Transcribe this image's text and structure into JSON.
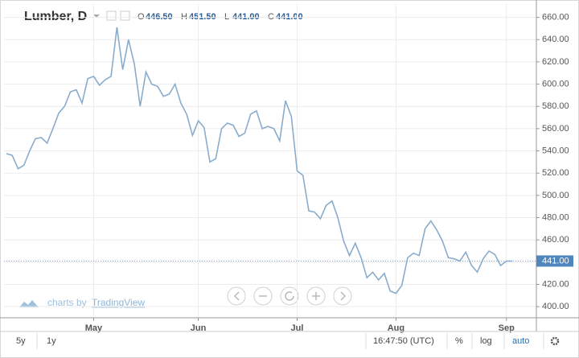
{
  "chart_data": {
    "type": "line",
    "title": "Lumber, D",
    "ohlc": [
      {
        "key": "O",
        "value": "446.50"
      },
      {
        "key": "H",
        "value": "451.50"
      },
      {
        "key": "L",
        "value": "441.00"
      },
      {
        "key": "C",
        "value": "441.00"
      }
    ],
    "series": [
      {
        "name": "Lumber",
        "color": "#8aaccc",
        "values": [
          537.6,
          536,
          524,
          527,
          540,
          551,
          552,
          547,
          560,
          574,
          580,
          593,
          595,
          583,
          605,
          607,
          599,
          604,
          607,
          651,
          613,
          640,
          618,
          580,
          611,
          600,
          598,
          589,
          591,
          600,
          583,
          573,
          554,
          567,
          561,
          530,
          533,
          560,
          565,
          563,
          553,
          556,
          573,
          576,
          560,
          562,
          560,
          549,
          585,
          571,
          522,
          518,
          486,
          485,
          479,
          491,
          495,
          480,
          459,
          446,
          457,
          444,
          426,
          431,
          424,
          430,
          414,
          412,
          419,
          444,
          448,
          446,
          470,
          477,
          469,
          459,
          444,
          443,
          441,
          449,
          437,
          431,
          443,
          450,
          447,
          437,
          441,
          441
        ]
      }
    ],
    "xticks": [
      {
        "value": 15,
        "label": "May"
      },
      {
        "value": 33,
        "label": "Jun"
      },
      {
        "value": 50,
        "label": "Jul"
      },
      {
        "value": 67,
        "label": "Aug"
      },
      {
        "value": 86,
        "label": "Sep"
      }
    ],
    "ylim": [
      390,
      672
    ],
    "yticks": [
      {
        "value": 400,
        "label": "400.00"
      },
      {
        "value": 420,
        "label": "420.00"
      },
      {
        "value": 440,
        "label": "440.00"
      },
      {
        "value": 460,
        "label": "460.00"
      },
      {
        "value": 480,
        "label": "480.00"
      },
      {
        "value": 500,
        "label": "500.00"
      },
      {
        "value": 520,
        "label": "520.00"
      },
      {
        "value": 540,
        "label": "540.00"
      },
      {
        "value": 560,
        "label": "560.00"
      },
      {
        "value": 580,
        "label": "580.00"
      },
      {
        "value": 600,
        "label": "600.00"
      },
      {
        "value": 620,
        "label": "620.00"
      },
      {
        "value": 640,
        "label": "640.00"
      },
      {
        "value": 660,
        "label": "660.00"
      }
    ],
    "last_price": {
      "value": 441,
      "label": "441.00"
    },
    "grid": true,
    "watermark": {
      "prefix": "charts by",
      "brand": "TradingView"
    },
    "toolbar": {
      "left": [
        "5y",
        "1y"
      ],
      "time": "16:47:50 (UTC)",
      "right": [
        "%",
        "log",
        "auto"
      ]
    }
  }
}
